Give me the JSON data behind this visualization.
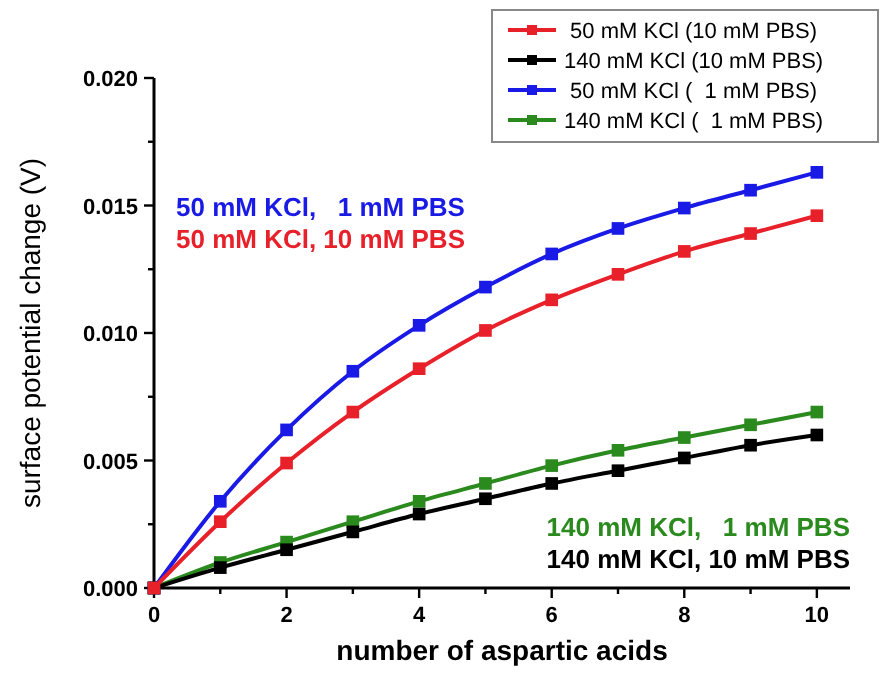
{
  "chart_data": {
    "type": "line",
    "xlabel": "number of aspartic acids",
    "ylabel": "surface potential change (V)",
    "x": [
      0,
      1,
      2,
      3,
      4,
      5,
      6,
      7,
      8,
      9,
      10
    ],
    "xlim": [
      0,
      10.5
    ],
    "xticks": [
      0,
      {
        "value": 1,
        "label": null
      },
      2,
      {
        "value": 3,
        "label": null
      },
      4,
      {
        "value": 5,
        "label": null
      },
      6,
      {
        "value": 7,
        "label": null
      },
      8,
      {
        "value": 9,
        "label": null
      },
      10
    ],
    "ylim": [
      0,
      0.02
    ],
    "yticks": [
      "0.000",
      {
        "value": 0.0025,
        "label": null
      },
      {
        "value": 0.005,
        "label": "0.005"
      },
      {
        "value": 0.0075,
        "label": null
      },
      {
        "value": 0.01,
        "label": "0.010"
      },
      {
        "value": 0.0125,
        "label": null
      },
      {
        "value": 0.015,
        "label": "0.015"
      },
      {
        "value": 0.0175,
        "label": null
      },
      {
        "value": 0.02,
        "label": "0.020"
      }
    ],
    "series": [
      {
        "name": " 50 mM KCl (10 mM PBS)",
        "color": "#e8202a",
        "values": [
          0,
          0.0026,
          0.0049,
          0.0069,
          0.0086,
          0.0101,
          0.0113,
          0.0123,
          0.0132,
          0.0139,
          0.0146
        ]
      },
      {
        "name": "140 mM KCl (10 mM PBS)",
        "color": "#000000",
        "values": [
          0,
          0.0008,
          0.0015,
          0.0022,
          0.0029,
          0.0035,
          0.0041,
          0.0046,
          0.0051,
          0.0056,
          0.006
        ]
      },
      {
        "name": " 50 mM KCl (  1 mM PBS)",
        "color": "#1a1ae6",
        "values": [
          0,
          0.0034,
          0.0062,
          0.0085,
          0.0103,
          0.0118,
          0.0131,
          0.0141,
          0.0149,
          0.0156,
          0.0163
        ]
      },
      {
        "name": "140 mM KCl (  1 mM PBS)",
        "color": "#2a8a1e",
        "values": [
          0,
          0.001,
          0.0018,
          0.0026,
          0.0034,
          0.0041,
          0.0048,
          0.0054,
          0.0059,
          0.0064,
          0.0069
        ]
      }
    ],
    "annotations": [
      "50 mM KCl,   1 mM PBS",
      "50 mM KCl, 10 mM PBS",
      "140 mM KCl,   1 mM PBS",
      "140 mM KCl, 10 mM PBS"
    ],
    "marker": "square",
    "legend": "top right",
    "grid": false
  }
}
